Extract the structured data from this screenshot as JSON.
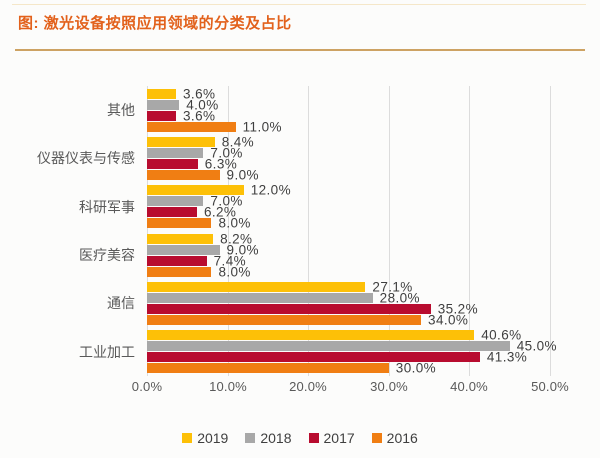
{
  "title": {
    "text": "图: 激光设备按照应用领域的分类及占比"
  },
  "colors": {
    "title": "#E2611C",
    "separator": "#CDA263",
    "grid": "#DCDCDC",
    "value_label": "#3F3F3F",
    "axis_label": "#595959",
    "category_label": "#595959",
    "background": "#FCFCFB"
  },
  "chart_data": {
    "type": "bar",
    "orientation": "horizontal",
    "title": "图: 激光设备按照应用领域的分类及占比",
    "categories": [
      "其他",
      "仪器仪表与传感",
      "科研军事",
      "医疗美容",
      "通信",
      "工业加工"
    ],
    "series": [
      {
        "name": "2019",
        "color": "#FDC007",
        "values": [
          3.6,
          8.4,
          12.0,
          8.2,
          27.1,
          40.6
        ]
      },
      {
        "name": "2018",
        "color": "#A8A8A8",
        "values": [
          4.0,
          7.0,
          7.0,
          9.0,
          28.0,
          45.0
        ]
      },
      {
        "name": "2017",
        "color": "#B80C2F",
        "values": [
          3.6,
          6.3,
          6.2,
          7.4,
          35.2,
          41.3
        ]
      },
      {
        "name": "2016",
        "color": "#F07E13",
        "values": [
          11.0,
          9.0,
          8.0,
          8.0,
          34.0,
          30.0
        ]
      }
    ],
    "value_labels": [
      [
        "3.6%",
        "8.4%",
        "12.0%",
        "8.2%",
        "27.1%",
        "40.6%"
      ],
      [
        "4.0%",
        "7.0%",
        "7.0%",
        "9.0%",
        "28.0%",
        "45.0%"
      ],
      [
        "3.6%",
        "6.3%",
        "6.2%",
        "7.4%",
        "35.2%",
        "41.3%"
      ],
      [
        "11.0%",
        "9.0%",
        "8.0%",
        "8.0%",
        "34.0%",
        "30.0%"
      ]
    ],
    "x_ticks": [
      "0.0%",
      "10.0%",
      "20.0%",
      "30.0%",
      "40.0%",
      "50.0%"
    ],
    "xlim": [
      0,
      50
    ],
    "grid": true,
    "legend_position": "bottom",
    "legend": [
      "2019",
      "2018",
      "2017",
      "2016"
    ]
  }
}
